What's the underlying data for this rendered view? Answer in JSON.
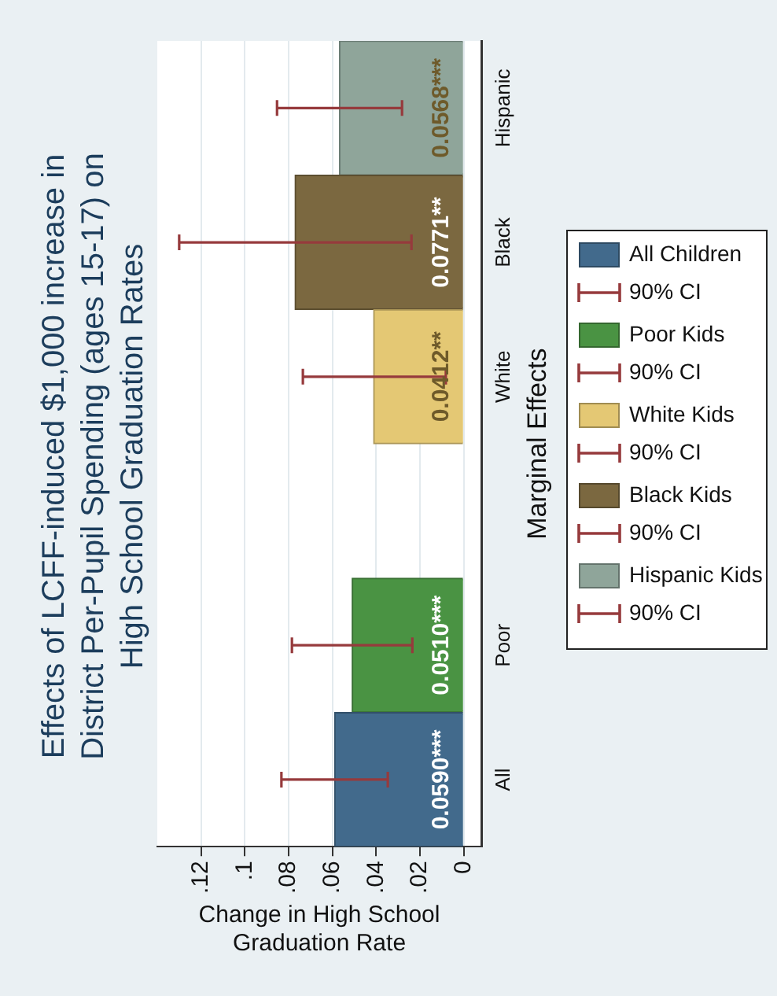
{
  "chart_data": {
    "type": "bar",
    "orientation": "horizontal",
    "title": "Effects of LCFF-induced $1,000 increase in District Per-Pupil Spending (ages 15-17) on High School Graduation Rates",
    "xlabel": "Change in High School Graduation Rate",
    "ylabel": "Marginal Effects",
    "categories": [
      "Hispanic",
      "Black",
      "White",
      null,
      "Poor",
      "All"
    ],
    "series": [
      {
        "name": "All Children",
        "color": "#426a8c",
        "values": [
          null,
          null,
          null,
          null,
          null,
          0.059
        ],
        "errors": [
          null,
          null,
          null,
          null,
          null,
          [
            0.0347,
            0.0833
          ]
        ],
        "value_labels": [
          null,
          null,
          null,
          null,
          null,
          "0.0590***"
        ]
      },
      {
        "name": "Poor Kids",
        "color": "#4a9343",
        "values": [
          null,
          null,
          null,
          null,
          0.051,
          null
        ],
        "errors": [
          null,
          null,
          null,
          null,
          [
            0.0235,
            0.0785
          ],
          null
        ],
        "value_labels": [
          null,
          null,
          null,
          null,
          "0.0510***",
          null
        ]
      },
      {
        "name": "White Kids",
        "color": "#e4c874",
        "values": [
          null,
          null,
          0.0412,
          null,
          null,
          null
        ],
        "errors": [
          null,
          null,
          [
            0.0082,
            0.0735
          ],
          null,
          null,
          null
        ],
        "value_labels": [
          null,
          null,
          "0.0412**",
          null,
          null,
          null
        ]
      },
      {
        "name": "Black Kids",
        "color": "#7b6840",
        "values": [
          null,
          0.0771,
          null,
          null,
          null,
          null
        ],
        "errors": [
          null,
          [
            0.0239,
            0.13
          ],
          null,
          null,
          null,
          null
        ],
        "value_labels": [
          null,
          "0.0771**",
          null,
          null,
          null,
          null
        ]
      },
      {
        "name": "Hispanic Kids",
        "color": "#8fa59a",
        "values": [
          0.0568,
          null,
          null,
          null,
          null,
          null
        ],
        "errors": [
          [
            0.0282,
            0.0853
          ],
          null,
          null,
          null,
          null,
          null
        ],
        "value_labels": [
          "0.0568***",
          null,
          null,
          null,
          null,
          null
        ]
      }
    ],
    "annotations": [
      "90% CI",
      "90% CI",
      "90% CI",
      "90% CI",
      "90% CI"
    ],
    "xlim": [
      0.14,
      -0.008
    ],
    "xticks": [
      0,
      {
        "value": 0.02,
        "label": ".02"
      },
      {
        "value": 0.04,
        "label": ".04"
      },
      {
        "value": 0.06,
        "label": ".06"
      },
      {
        "value": 0.08,
        "label": ".08"
      },
      {
        "value": 0.1,
        "label": ".1"
      },
      {
        "value": 0.12,
        "label": ".12"
      }
    ],
    "grid": "x",
    "legend": "right"
  }
}
